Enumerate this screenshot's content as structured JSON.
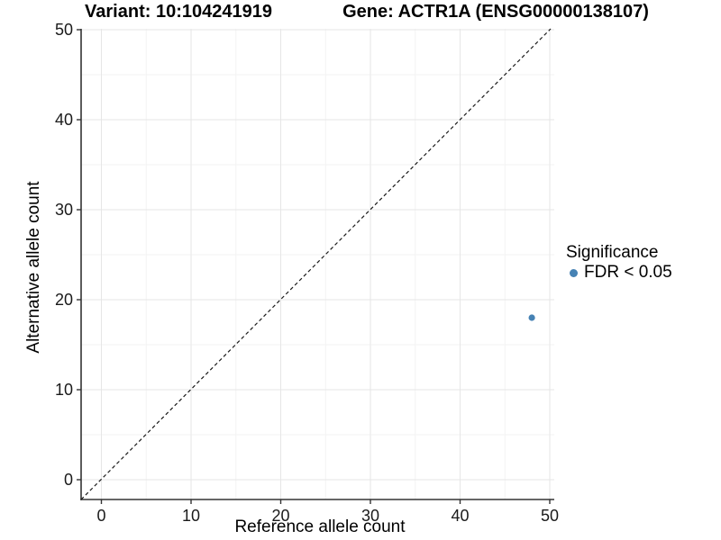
{
  "chart_data": {
    "type": "scatter",
    "title_left": "Variant: 10:104241919",
    "title_right": "Gene: ACTR1A (ENSG00000138107)",
    "xlabel": "Reference allele count",
    "ylabel": "Alternative allele count",
    "xlim": [
      -2.3,
      50.3
    ],
    "ylim": [
      -2.3,
      50.3
    ],
    "x_ticks": [
      0,
      10,
      20,
      30,
      40,
      50
    ],
    "y_ticks": [
      0,
      10,
      20,
      30,
      40,
      50
    ],
    "x_minor_ticks": [
      5,
      15,
      25,
      35,
      45
    ],
    "y_minor_ticks": [
      5,
      15,
      25,
      35,
      45
    ],
    "grid": "major+minor",
    "legend_position": "right",
    "legend_title": "Significance",
    "reference_line": {
      "type": "identity y=x",
      "style": "dashed",
      "color": "#000000"
    },
    "series": [
      {
        "name": "FDR < 0.05",
        "color": "#4682B4",
        "points": [
          {
            "x": 48,
            "y": 18
          }
        ]
      }
    ]
  },
  "colors": {
    "point": "#4682B4",
    "axis_line": "#333333",
    "tick_text": "#1a1a1a",
    "grid_major": "#e6e6e6",
    "grid_minor": "#f3f3f3",
    "reference_line": "#1a1a1a",
    "background": "#ffffff"
  }
}
